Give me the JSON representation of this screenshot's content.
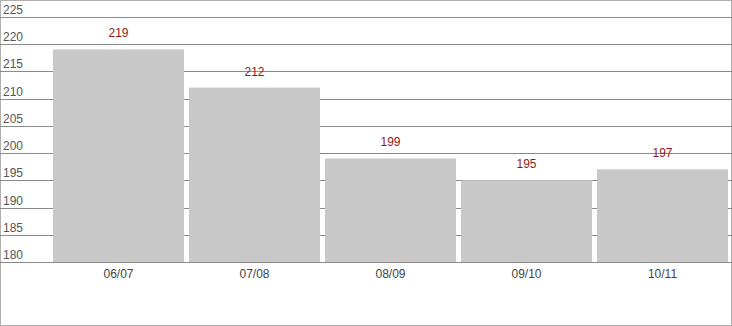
{
  "chart_data": {
    "type": "bar",
    "categories": [
      "06/07",
      "07/08",
      "08/09",
      "09/10",
      "10/11"
    ],
    "values": [
      219,
      212,
      199,
      195,
      197
    ],
    "color": "#c8c8c8",
    "ylim": [
      180,
      225
    ],
    "yticks": [
      180,
      185,
      190,
      195,
      200,
      205,
      210,
      215,
      220,
      225
    ],
    "grid": true,
    "data_labels": true
  }
}
